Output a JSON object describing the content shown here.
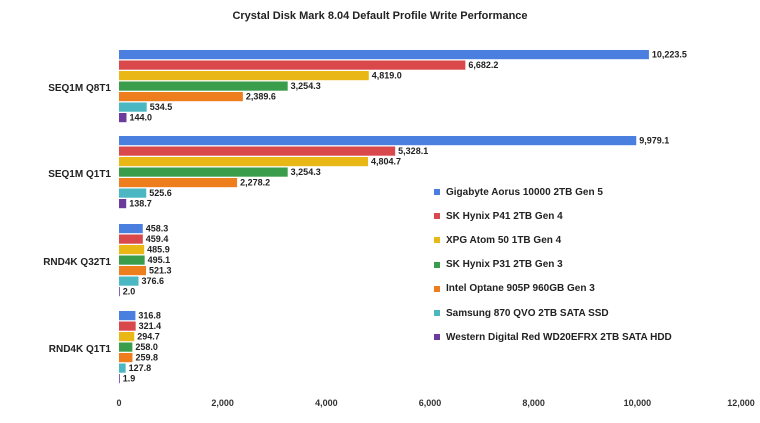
{
  "chart_data": {
    "type": "bar",
    "orientation": "horizontal",
    "title": "Crystal Disk Mark 8.04 Default Profile Write Performance",
    "categories": [
      "SEQ1M Q8T1",
      "SEQ1M Q1T1",
      "RND4K Q32T1",
      "RND4K Q1T1"
    ],
    "series": [
      {
        "name": "Gigabyte Aorus 10000 2TB Gen 5",
        "color": "#4a7fe0",
        "values": [
          10223.5,
          9979.1,
          458.3,
          316.8
        ],
        "labels": [
          "10,223.5",
          "9,979.1",
          "458.3",
          "316.8"
        ]
      },
      {
        "name": "SK Hynix P41 2TB Gen 4",
        "color": "#d9484a",
        "values": [
          6682.2,
          5328.1,
          459.4,
          321.4
        ],
        "labels": [
          "6,682.2",
          "5,328.1",
          "459.4",
          "321.4"
        ]
      },
      {
        "name": "XPG Atom 50 1TB Gen 4",
        "color": "#eab816",
        "values": [
          4819.0,
          4804.7,
          485.9,
          294.7
        ],
        "labels": [
          "4,819.0",
          "4,804.7",
          "485.9",
          "294.7"
        ]
      },
      {
        "name": "SK Hynix P31 2TB Gen 3",
        "color": "#3a9d4b",
        "values": [
          3254.3,
          3254.3,
          495.1,
          258.0
        ],
        "labels": [
          "3,254.3",
          "3,254.3",
          "495.1",
          "258.0"
        ]
      },
      {
        "name": "Intel Optane 905P 960GB Gen 3",
        "color": "#ee7d1d",
        "values": [
          2389.6,
          2278.2,
          521.3,
          259.8
        ],
        "labels": [
          "2,389.6",
          "2,278.2",
          "521.3",
          "259.8"
        ]
      },
      {
        "name": "Samsung 870 QVO 2TB SATA SSD",
        "color": "#4ab7c2",
        "values": [
          534.5,
          525.6,
          376.6,
          127.8
        ],
        "labels": [
          "534.5",
          "525.6",
          "376.6",
          "127.8"
        ]
      },
      {
        "name": "Western Digital Red WD20EFRX 2TB SATA HDD",
        "color": "#6a3b9c",
        "values": [
          144.0,
          138.7,
          2.0,
          1.9
        ],
        "labels": [
          "144.0",
          "138.7",
          "2.0",
          "1.9"
        ]
      }
    ],
    "xlim": [
      0,
      12000
    ],
    "xticks": [
      0,
      2000,
      4000,
      6000,
      8000,
      10000,
      12000
    ],
    "xtick_labels": [
      "0",
      "2,000",
      "4,000",
      "6,000",
      "8,000",
      "10,000",
      "12,000"
    ],
    "grid": false,
    "legend_position": "right-center"
  }
}
